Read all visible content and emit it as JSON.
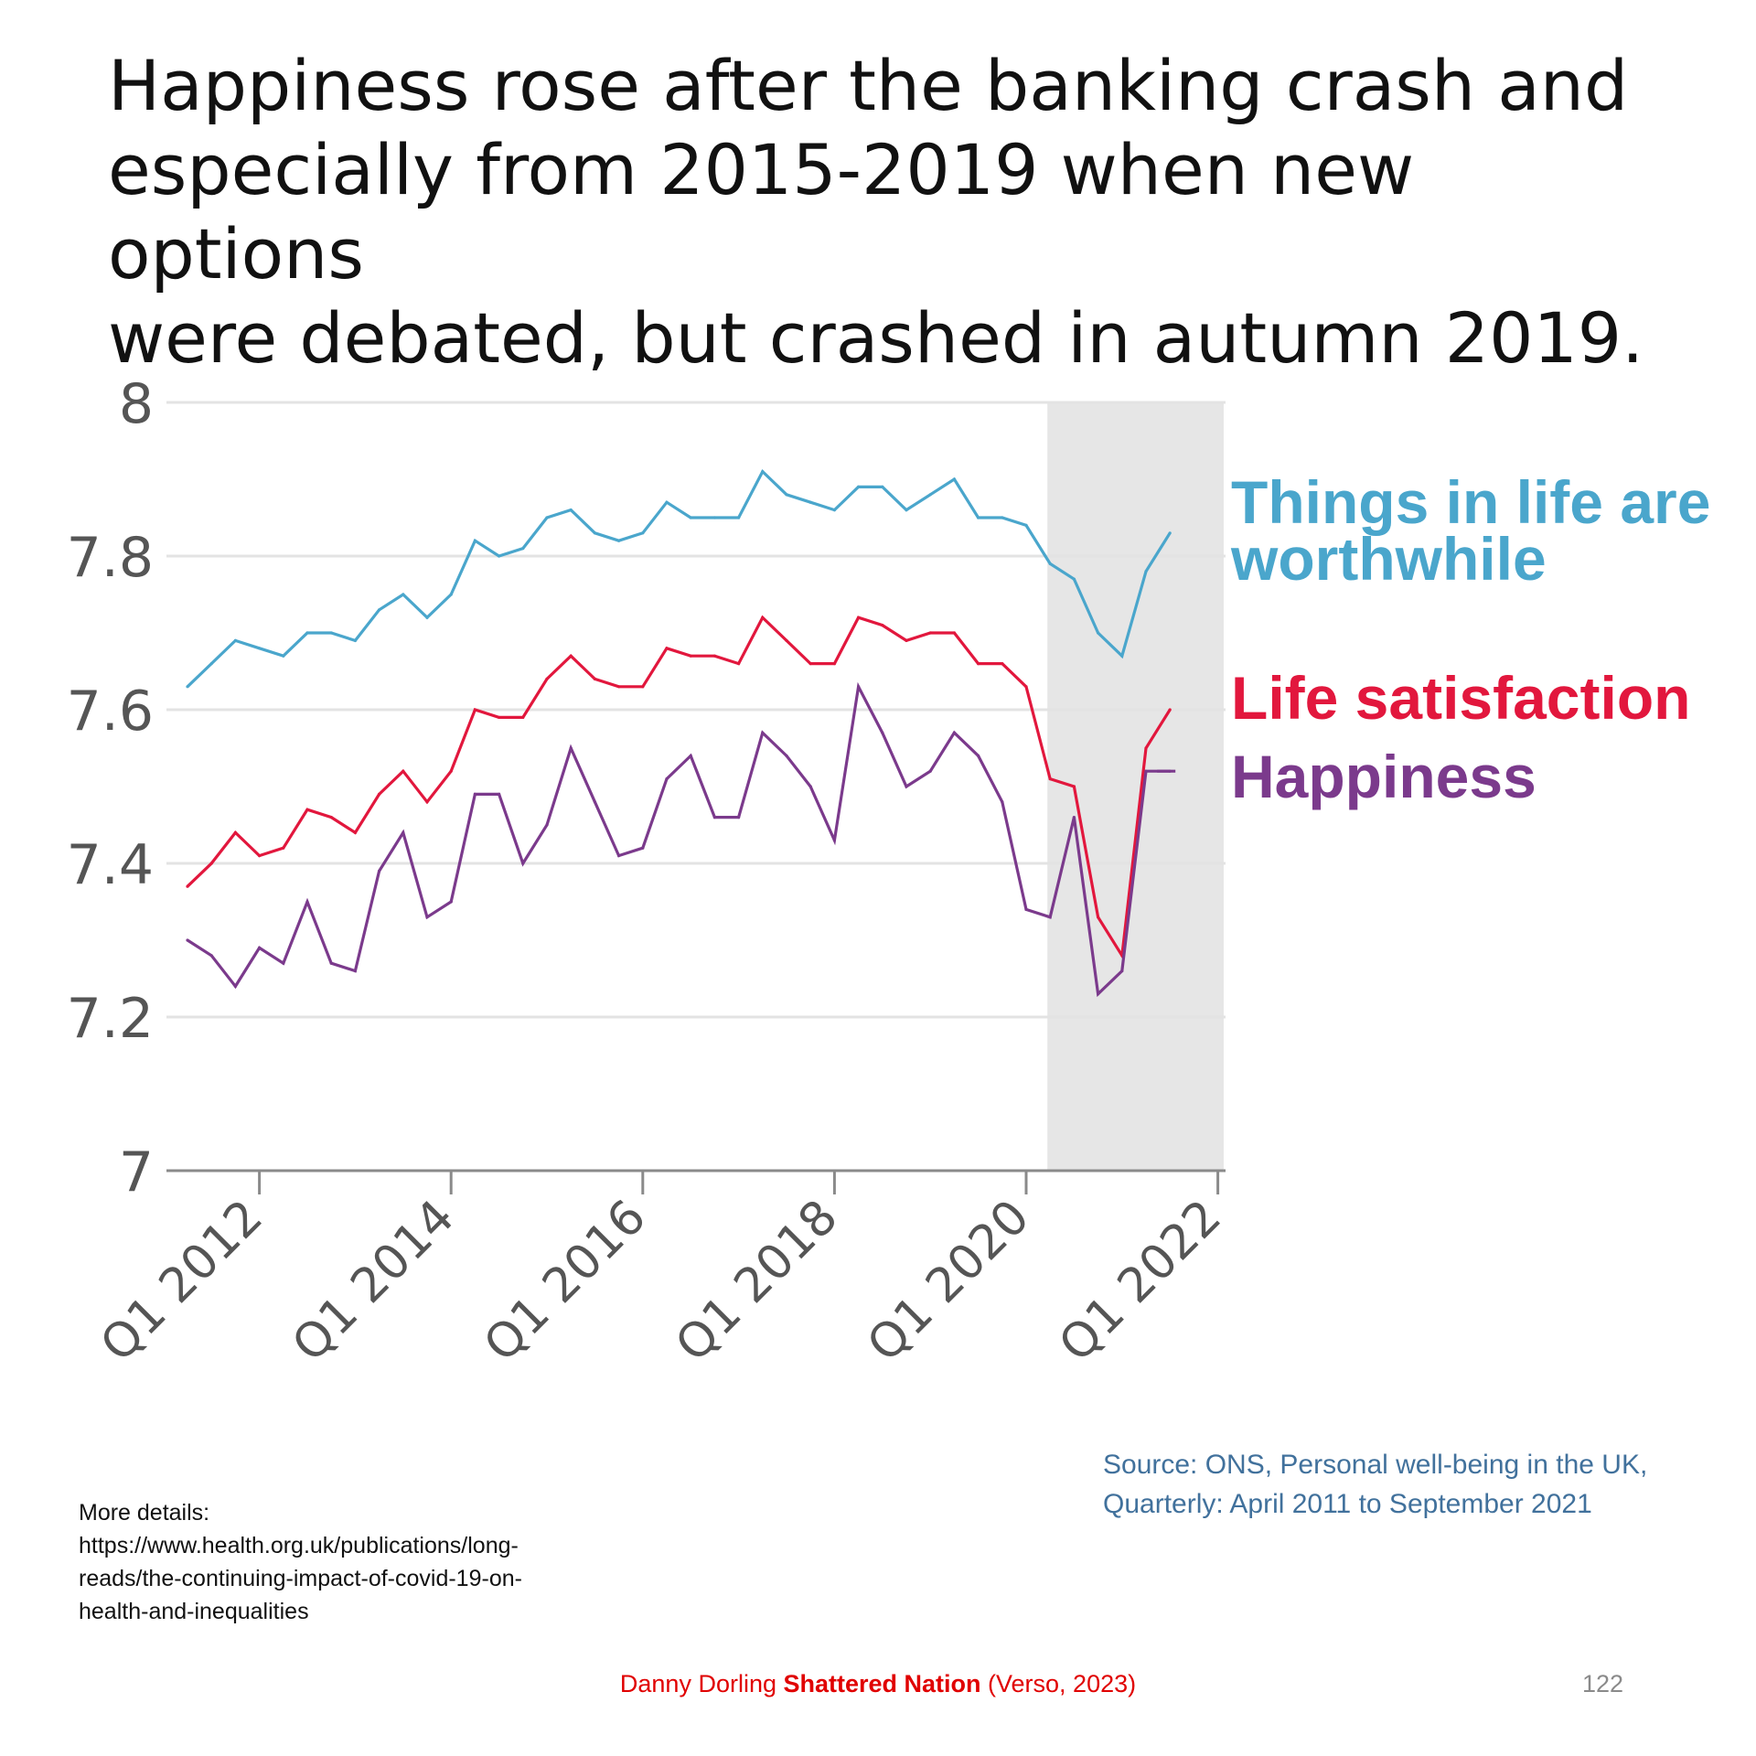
{
  "slide": {
    "title_lines": [
      "Happiness rose after the banking crash and",
      "especially from 2015-2019 when new options",
      "were debated, but crashed in autumn 2019."
    ],
    "details": {
      "heading": "More details:",
      "link_lines": [
        "https://www.health.org.uk/publications/long-",
        "reads/the-continuing-impact-of-covid-19-on-",
        "health-and-inequalities"
      ]
    },
    "source_lines": [
      "Source: ONS, Personal well-being in the UK,",
      "Quarterly: April 2011 to September 2021"
    ],
    "footer": {
      "author": "Danny Dorling ",
      "book": "Shattered Nation",
      "publisher": " (Verso, 2023)"
    },
    "page_number": "122"
  },
  "chart_data": {
    "type": "line",
    "ylim": [
      7,
      8
    ],
    "y_ticks": [
      "7",
      "7.2",
      "7.4",
      "7.6",
      "7.8",
      "8"
    ],
    "x_ticks": [
      "Q1 2012",
      "Q1 2014",
      "Q1 2016",
      "Q1 2018",
      "Q1 2020",
      "Q1 2022"
    ],
    "grid": true,
    "shaded_region_label": "",
    "x_start_quarter": "Q2 2011",
    "colors": {
      "worthwhile": "#4aa6cc",
      "life_satisfaction": "#e2173d",
      "happiness": "#7b3a8c",
      "shade": "#e6e6e6",
      "grid": "#e3e3e3",
      "axis": "#8a8a8a"
    },
    "series": [
      {
        "name": "Things in life are worthwhile",
        "label_lines": [
          "Things in life are",
          "worthwhile"
        ],
        "key": "worthwhile",
        "values": [
          7.63,
          7.66,
          7.69,
          7.68,
          7.67,
          7.7,
          7.7,
          7.69,
          7.73,
          7.75,
          7.72,
          7.75,
          7.82,
          7.8,
          7.81,
          7.85,
          7.86,
          7.83,
          7.82,
          7.83,
          7.87,
          7.85,
          7.85,
          7.85,
          7.91,
          7.88,
          7.87,
          7.86,
          7.89,
          7.89,
          7.86,
          7.88,
          7.9,
          7.85,
          7.85,
          7.84,
          7.79,
          7.77,
          7.7,
          7.67,
          7.78,
          7.83
        ]
      },
      {
        "name": "Life satisfaction",
        "label_lines": [
          "Life satisfaction"
        ],
        "key": "life_satisfaction",
        "values": [
          7.37,
          7.4,
          7.44,
          7.41,
          7.42,
          7.47,
          7.46,
          7.44,
          7.49,
          7.52,
          7.48,
          7.52,
          7.6,
          7.59,
          7.59,
          7.64,
          7.67,
          7.64,
          7.63,
          7.63,
          7.68,
          7.67,
          7.67,
          7.66,
          7.72,
          7.69,
          7.66,
          7.66,
          7.72,
          7.71,
          7.69,
          7.7,
          7.7,
          7.66,
          7.66,
          7.63,
          7.51,
          7.5,
          7.33,
          7.28,
          7.55,
          7.6
        ]
      },
      {
        "name": "Happiness",
        "label_lines": [
          "Happiness"
        ],
        "key": "happiness",
        "values": [
          7.3,
          7.28,
          7.24,
          7.29,
          7.27,
          7.35,
          7.27,
          7.26,
          7.39,
          7.44,
          7.33,
          7.35,
          7.49,
          7.49,
          7.4,
          7.45,
          7.55,
          7.48,
          7.41,
          7.42,
          7.51,
          7.54,
          7.46,
          7.46,
          7.57,
          7.54,
          7.5,
          7.43,
          7.63,
          7.57,
          7.5,
          7.52,
          7.57,
          7.54,
          7.48,
          7.34,
          7.33,
          7.46,
          7.23,
          7.26,
          7.52,
          7.52
        ]
      }
    ]
  }
}
